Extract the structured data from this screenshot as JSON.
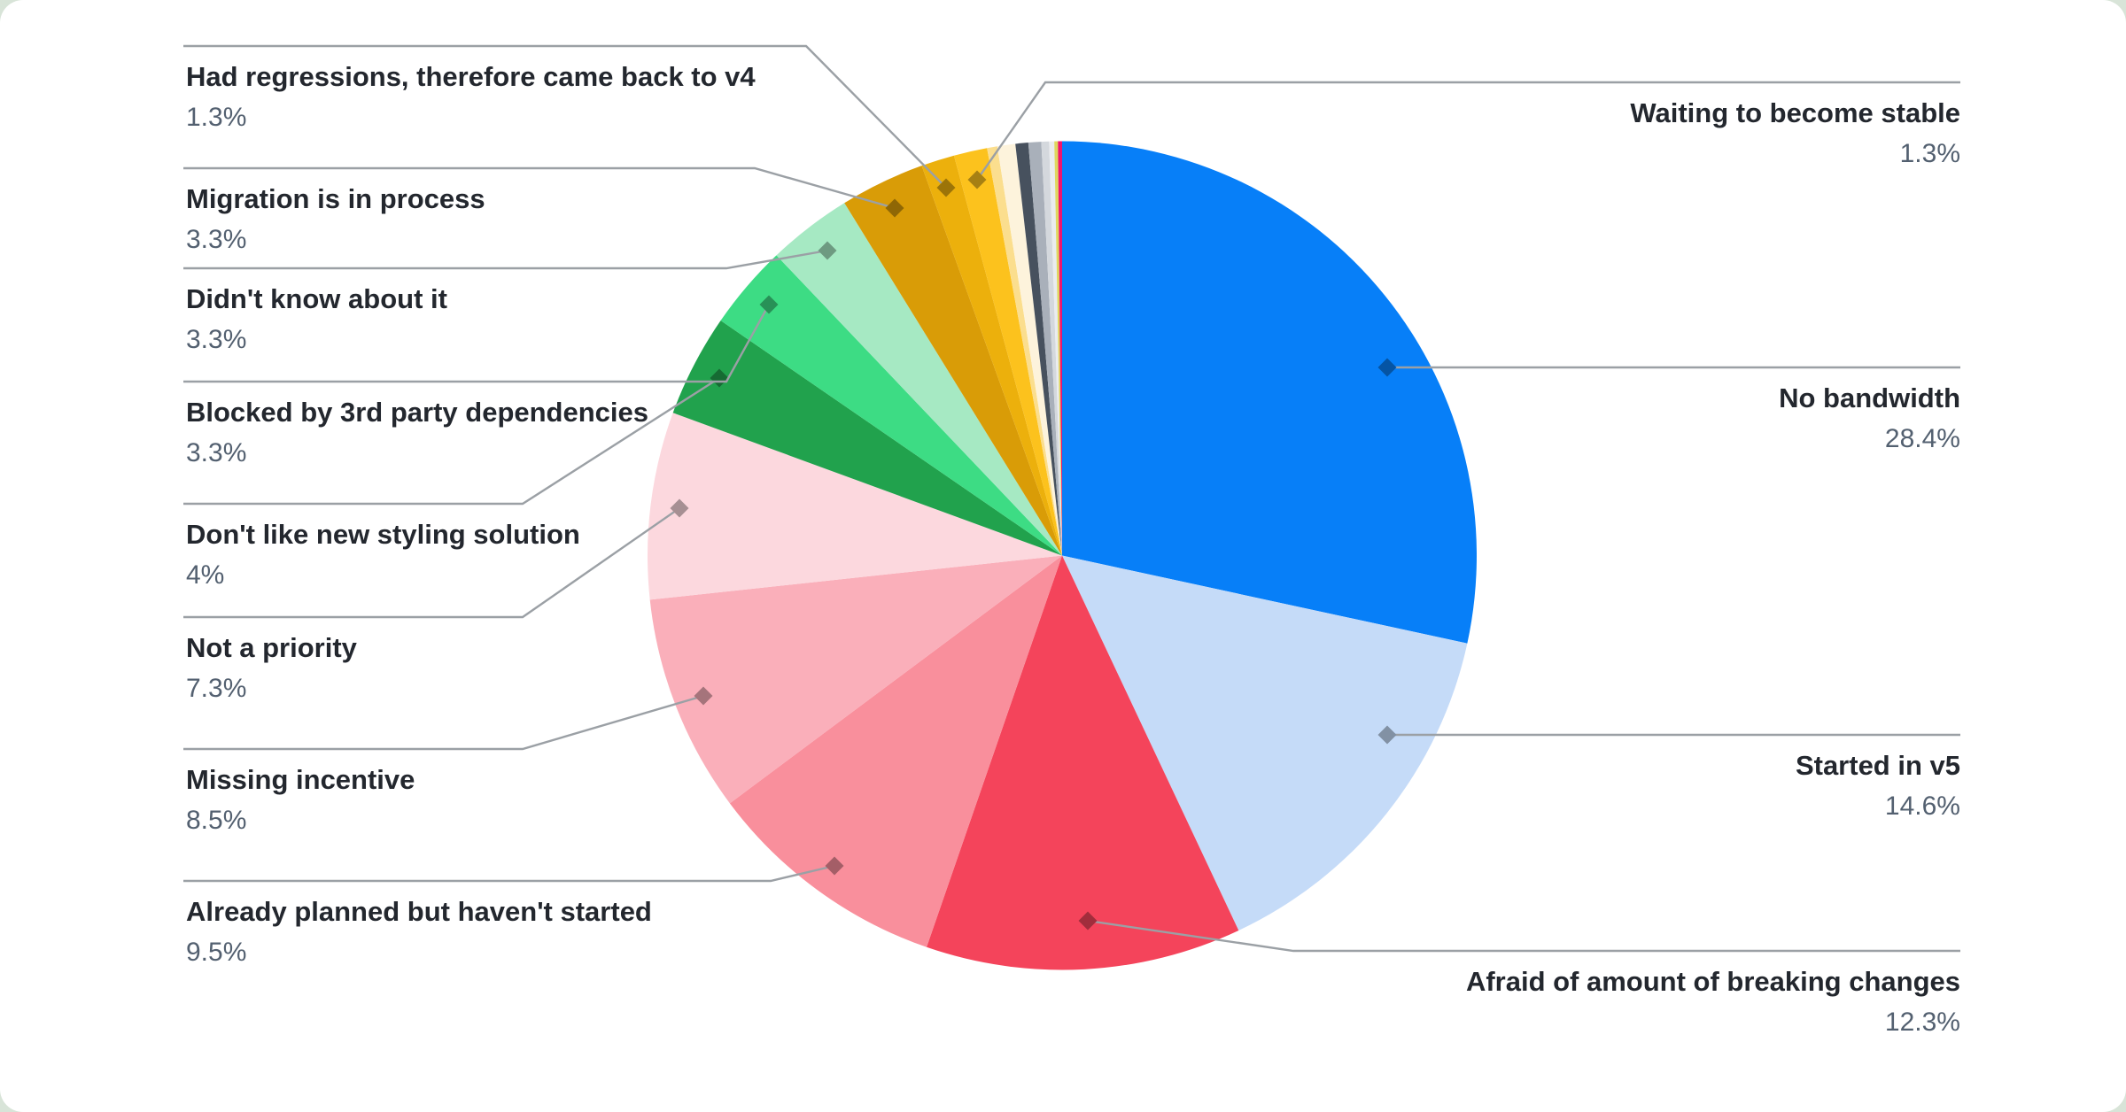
{
  "page": {
    "background_color": "#d8e4d8",
    "card_background_color": "#ffffff"
  },
  "styles": {
    "label_title_color": "#23272E",
    "label_value_color": "#536070",
    "leader_line_color": "#9BA0A5"
  },
  "chart_data": {
    "type": "pie",
    "title": "",
    "legend_position": "callout-labels",
    "start_angle": "12 o'clock, clockwise",
    "slices": [
      {
        "label": "No bandwidth",
        "value": 28.4,
        "display": "28.4%",
        "color": "#077FF8",
        "labeled": true
      },
      {
        "label": "Started in v5",
        "value": 14.6,
        "display": "14.6%",
        "color": "#C5DBF8",
        "labeled": true
      },
      {
        "label": "Afraid of amount of breaking changes",
        "value": 12.3,
        "display": "12.3%",
        "color": "#F4445B",
        "labeled": true
      },
      {
        "label": "Already planned but haven't started",
        "value": 9.5,
        "display": "9.5%",
        "color": "#F98F9C",
        "labeled": true
      },
      {
        "label": "Missing incentive",
        "value": 8.5,
        "display": "8.5%",
        "color": "#FAAFBA",
        "labeled": true
      },
      {
        "label": "Not a priority",
        "value": 7.3,
        "display": "7.3%",
        "color": "#FCD8DE",
        "labeled": true
      },
      {
        "label": "Don't like new styling solution",
        "value": 4,
        "display": "4%",
        "color": "#21A24D",
        "labeled": true
      },
      {
        "label": "Blocked by 3rd party dependencies",
        "value": 3.3,
        "display": "3.3%",
        "color": "#3DDC84",
        "labeled": true
      },
      {
        "label": "Didn't know about it",
        "value": 3.3,
        "display": "3.3%",
        "color": "#A6E9C3",
        "labeled": true
      },
      {
        "label": "Migration is in process",
        "value": 3.3,
        "display": "3.3%",
        "color": "#D99C07",
        "labeled": true
      },
      {
        "label": "Had regressions, therefore came back to v4",
        "value": 1.3,
        "display": "1.3%",
        "color": "#ECB00C",
        "labeled": true
      },
      {
        "label": "Waiting to become stable",
        "value": 1.3,
        "display": "1.3%",
        "color": "#FCC21D",
        "labeled": true
      },
      {
        "label": "",
        "value": 0.4,
        "display": "",
        "color": "#FBDE8E",
        "labeled": false
      },
      {
        "label": "",
        "value": 0.7,
        "display": "",
        "color": "#FDF3DC",
        "labeled": false
      },
      {
        "label": "",
        "value": 0.5,
        "display": "",
        "color": "#47515E",
        "labeled": false
      },
      {
        "label": "",
        "value": 0.5,
        "display": "",
        "color": "#A9B0BA",
        "labeled": false
      },
      {
        "label": "",
        "value": 0.3,
        "display": "",
        "color": "#D4D8DD",
        "labeled": false
      },
      {
        "label": "",
        "value": 0.2,
        "display": "",
        "color": "#EAECEF",
        "labeled": false
      },
      {
        "label": "",
        "value": 0.14,
        "display": "",
        "color": "#DFD75F",
        "labeled": false
      },
      {
        "label": "",
        "value": 0.16,
        "display": "",
        "color": "#F0146D",
        "labeled": false
      }
    ]
  }
}
